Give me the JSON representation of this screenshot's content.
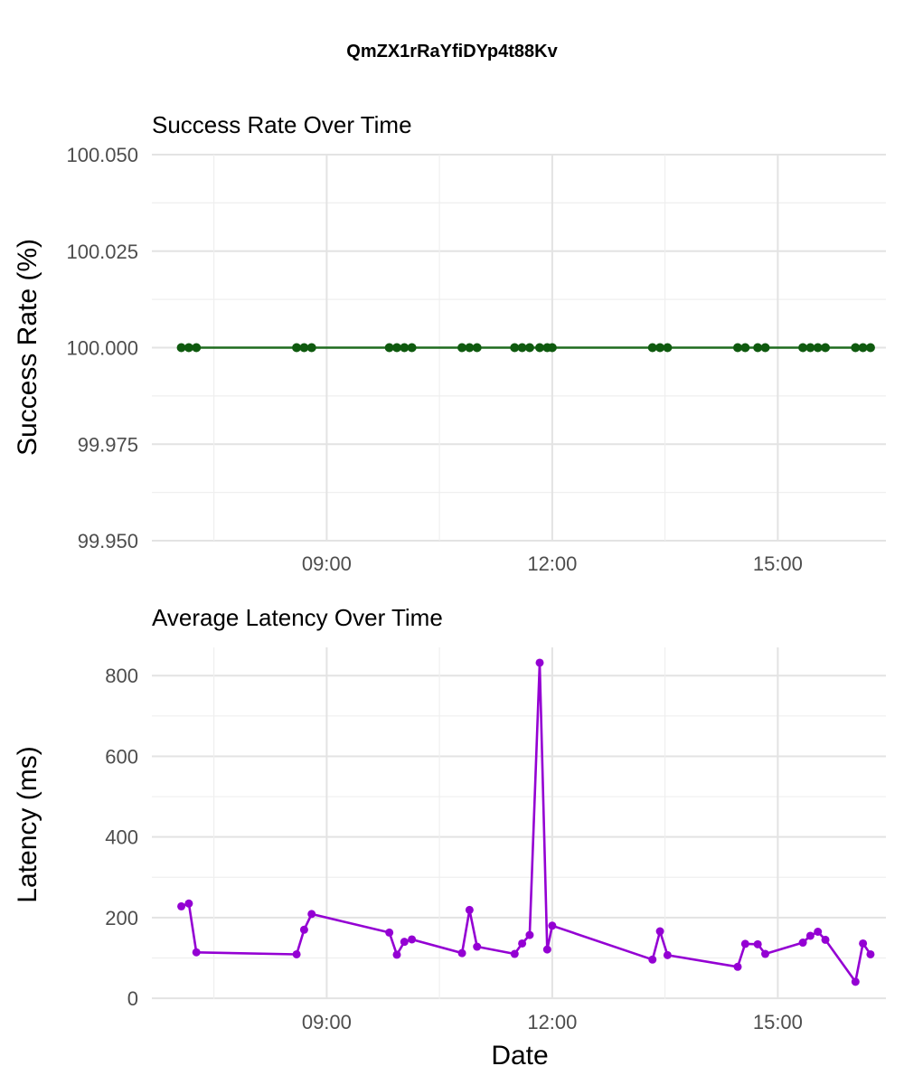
{
  "chart_data": {
    "title": "QmZX1rRaYfiDYp4t88Kv",
    "xlabel": "Date",
    "x_ticks": [
      "09:00",
      "12:00",
      "15:00"
    ],
    "panels": [
      {
        "type": "line",
        "subtitle": "Success Rate Over Time",
        "ylabel": "Success Rate (%)",
        "ylim": [
          99.95,
          100.05
        ],
        "y_ticks": [
          "100.050",
          "100.025",
          "100.000",
          "99.975",
          "99.950"
        ],
        "y_tick_values": [
          100.05,
          100.025,
          100.0,
          99.975,
          99.95
        ],
        "color": "#1e6b1e",
        "point_color": "#0f5a0f",
        "x": [
          "07:04",
          "07:10",
          "07:16",
          "08:36",
          "08:42",
          "08:48",
          "09:50",
          "09:56",
          "10:02",
          "10:08",
          "10:48",
          "10:54",
          "11:00",
          "11:30",
          "11:36",
          "11:42",
          "11:50",
          "11:56",
          "12:00",
          "13:20",
          "13:26",
          "13:32",
          "14:28",
          "14:34",
          "14:44",
          "14:50",
          "15:20",
          "15:26",
          "15:32",
          "15:38",
          "16:02",
          "16:08",
          "16:14"
        ],
        "y": [
          100,
          100,
          100,
          100,
          100,
          100,
          100,
          100,
          100,
          100,
          100,
          100,
          100,
          100,
          100,
          100,
          100,
          100,
          100,
          100,
          100,
          100,
          100,
          100,
          100,
          100,
          100,
          100,
          100,
          100,
          100,
          100,
          100
        ]
      },
      {
        "type": "line",
        "subtitle": "Average Latency Over Time",
        "ylabel": "Latency (ms)",
        "ylim": [
          0,
          870
        ],
        "y_ticks": [
          "800",
          "600",
          "400",
          "200",
          "0"
        ],
        "y_tick_values": [
          800,
          600,
          400,
          200,
          0
        ],
        "color": "#9400d3",
        "point_color": "#9400d3",
        "x": [
          "07:04",
          "07:10",
          "07:16",
          "08:36",
          "08:42",
          "08:48",
          "09:50",
          "09:56",
          "10:02",
          "10:08",
          "10:48",
          "10:54",
          "11:00",
          "11:30",
          "11:36",
          "11:42",
          "11:50",
          "11:56",
          "12:00",
          "13:20",
          "13:26",
          "13:32",
          "14:28",
          "14:34",
          "14:44",
          "14:50",
          "15:20",
          "15:26",
          "15:32",
          "15:38",
          "16:02",
          "16:08",
          "16:14"
        ],
        "y": [
          228,
          235,
          114,
          109,
          170,
          209,
          163,
          108,
          140,
          146,
          112,
          219,
          128,
          110,
          136,
          157,
          832,
          121,
          180,
          96,
          166,
          107,
          78,
          135,
          134,
          110,
          138,
          155,
          165,
          145,
          41,
          136,
          109
        ]
      }
    ]
  }
}
